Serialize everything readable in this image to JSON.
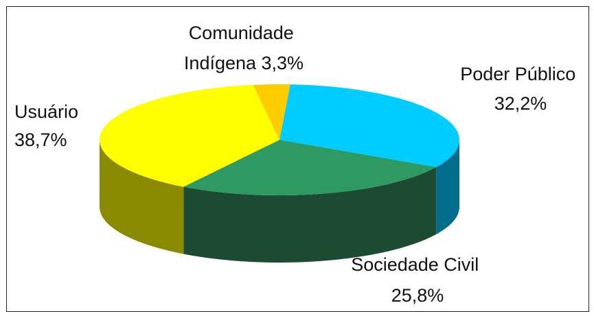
{
  "chart_data": {
    "type": "pie",
    "style": "3d",
    "title": "",
    "slices": [
      {
        "name": "Poder Público",
        "value": 32.2,
        "label": "32,2%",
        "color": "#00ccff",
        "side_color": "#006e8a"
      },
      {
        "name": "Sociedade Civil",
        "value": 25.8,
        "label": "25,8%",
        "color": "#2e9961",
        "side_color": "#1c4a33"
      },
      {
        "name": "Usuário",
        "value": 38.7,
        "label": "38,7%",
        "color": "#ffff00",
        "side_color": "#8a8a00"
      },
      {
        "name": "Comunidade Indígena",
        "value": 3.3,
        "label": "3,3%",
        "color": "#ffcc00",
        "side_color": "#8a6e00"
      }
    ],
    "label_lines": [
      [
        "Poder Público",
        "32,2%"
      ],
      [
        "Sociedade Civil",
        "25,8%"
      ],
      [
        "Usuário",
        "38,7%"
      ],
      [
        "Comunidade",
        "Indígena 3,3%"
      ]
    ]
  }
}
